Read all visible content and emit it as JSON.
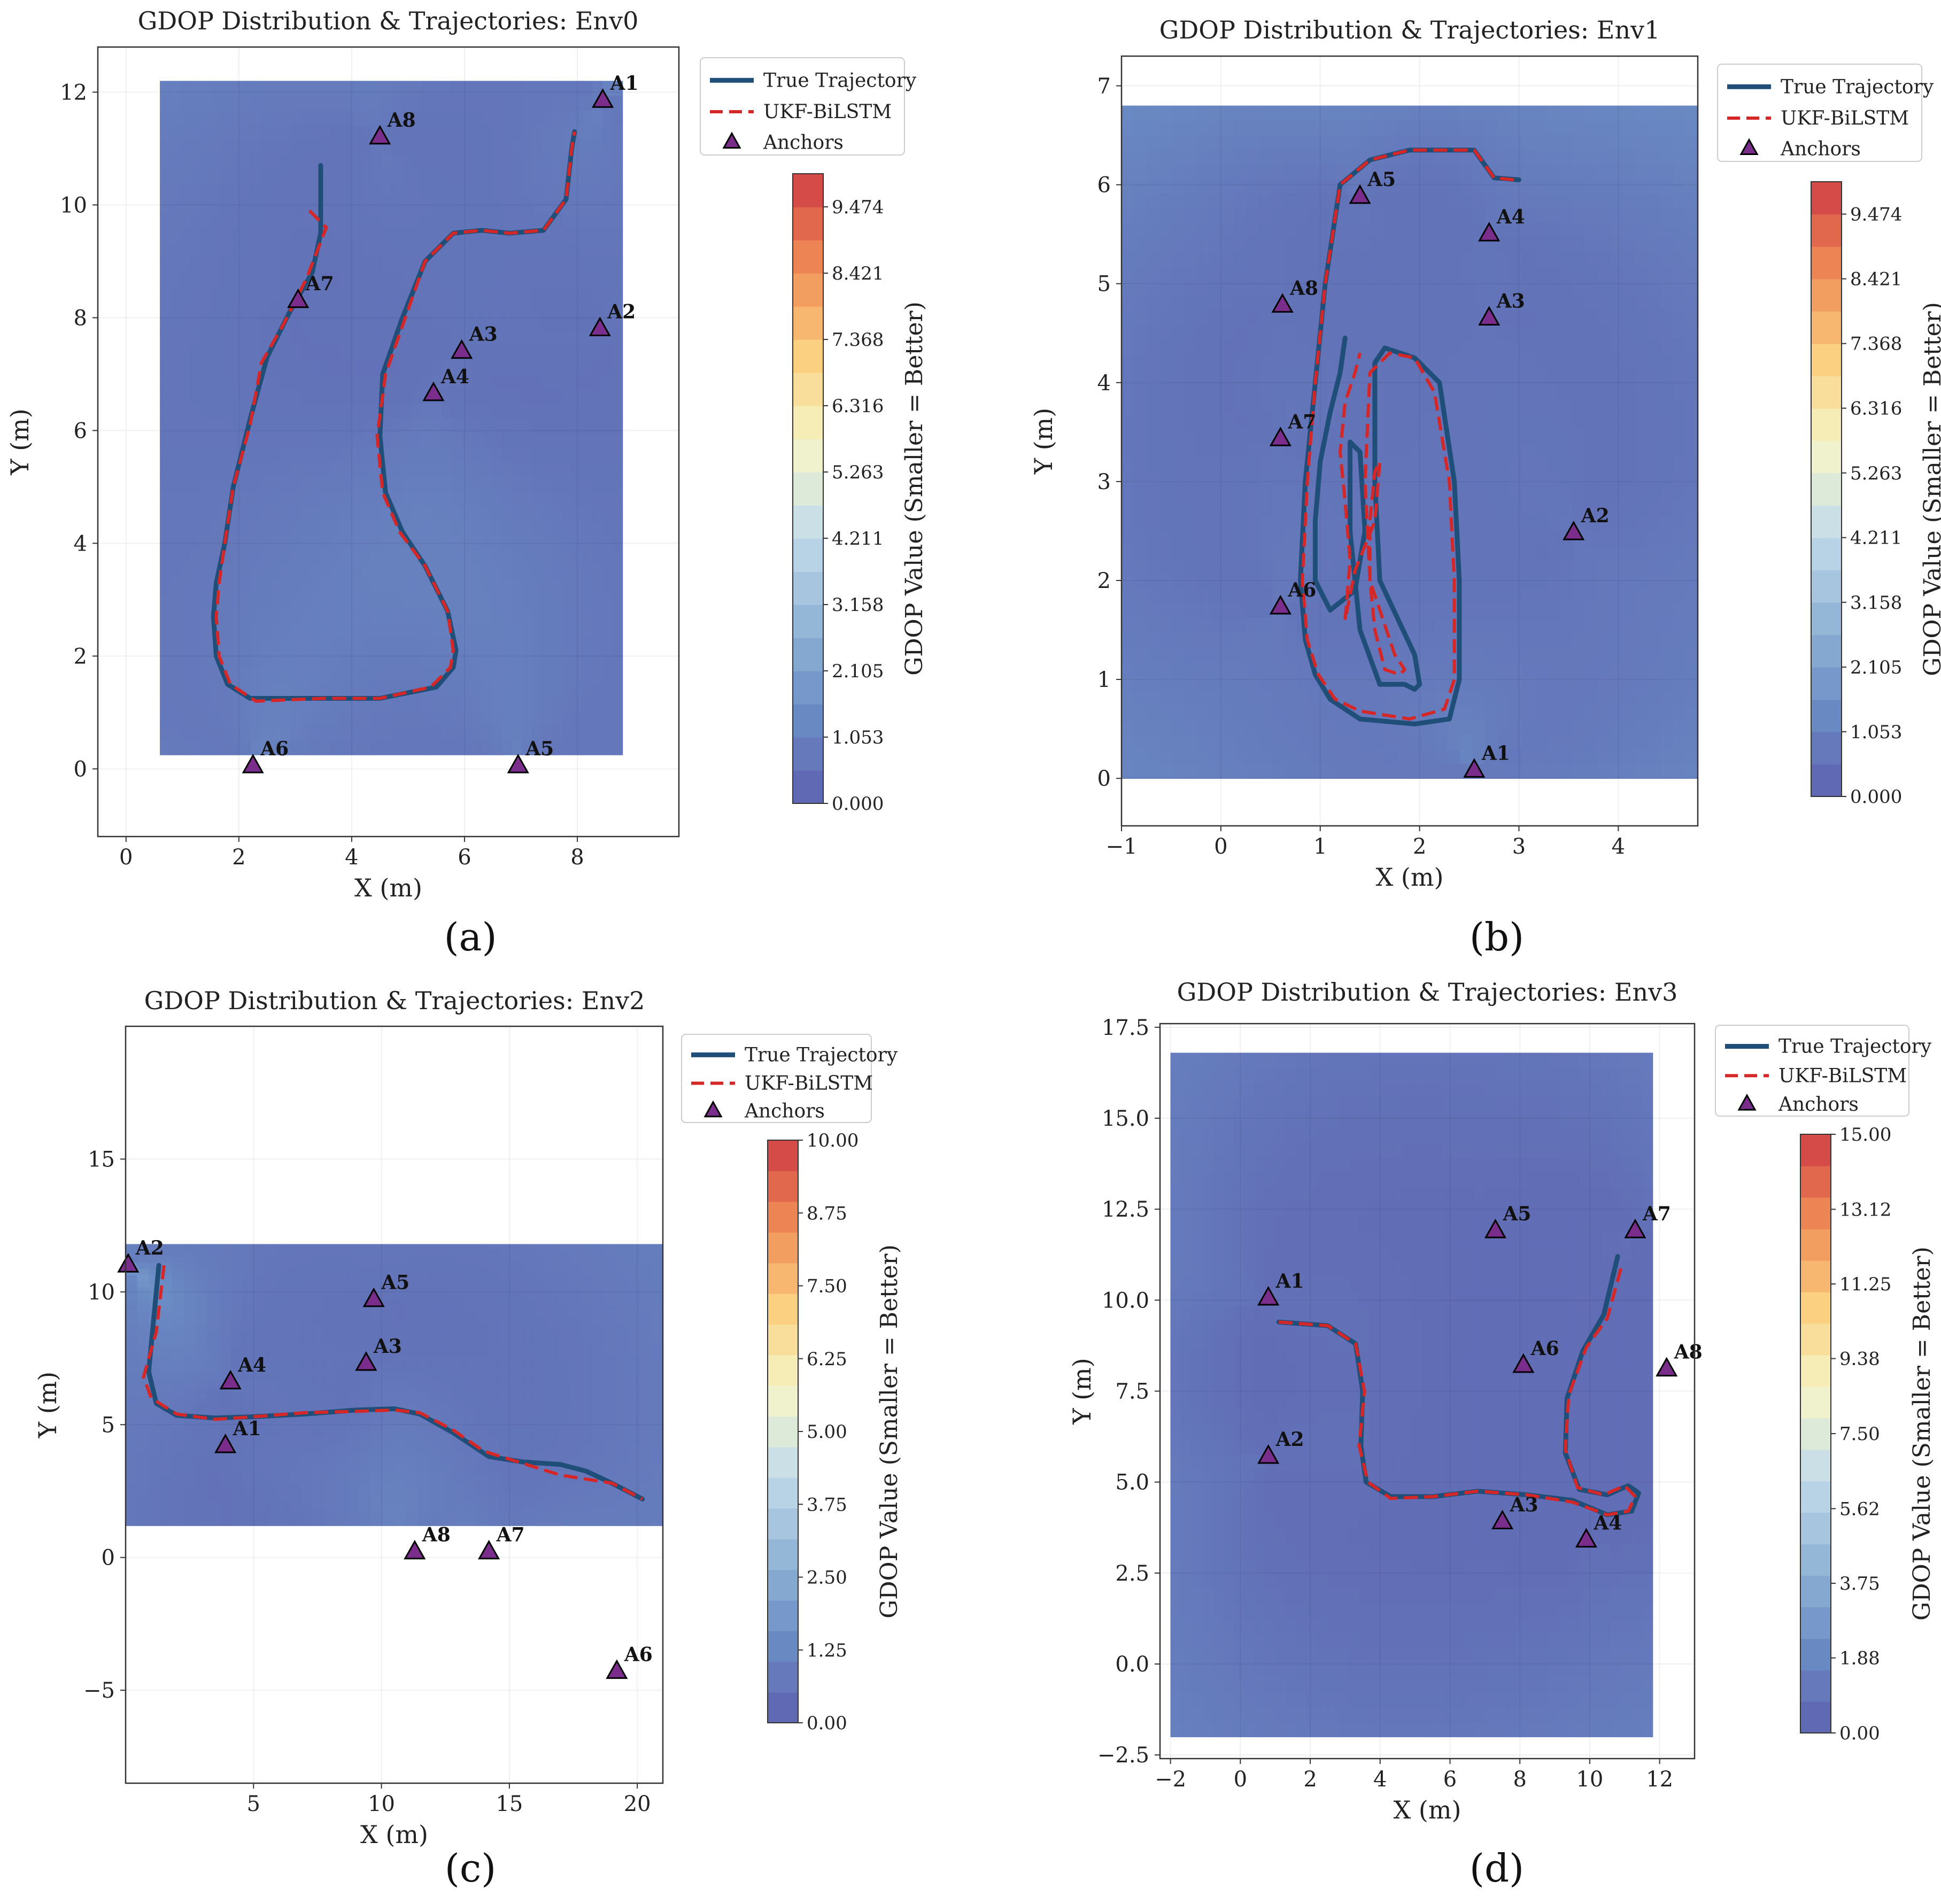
{
  "colors": {
    "true_trajectory": "#1f4e79",
    "ukf_bilstm": "#d62728",
    "anchor": "#7b2d8b",
    "colormap": [
      "#5e62b0",
      "#6a8cc4",
      "#93b6d8",
      "#c5dcea",
      "#f5f5c8",
      "#fbcf7e",
      "#f08a55",
      "#cf3d44"
    ]
  },
  "chart_data": [
    {
      "panel": "(a)",
      "type": "contour",
      "title": "GDOP Distribution & Trajectories: Env0",
      "xlabel": "X (m)",
      "ylabel": "Y (m)",
      "xlim": [
        -0.5,
        9.8
      ],
      "ylim": [
        -1.2,
        12.8
      ],
      "xticks": [
        0,
        2,
        4,
        6,
        8
      ],
      "yticks": [
        0,
        2,
        4,
        6,
        8,
        10,
        12
      ],
      "field_extent": {
        "x": [
          0.6,
          8.8
        ],
        "y": [
          0.25,
          12.2
        ]
      },
      "gdop_range": [
        0,
        10
      ],
      "colorbar": {
        "label": "GDOP Value (Smaller = Better)",
        "ticks": [
          "0.000",
          "1.053",
          "2.105",
          "3.158",
          "4.211",
          "5.263",
          "6.316",
          "7.368",
          "8.421",
          "9.474"
        ]
      },
      "legend": [
        "True Trajectory",
        "UKF-BiLSTM",
        "Anchors"
      ],
      "anchors": [
        {
          "name": "A1",
          "x": 8.45,
          "y": 11.85
        },
        {
          "name": "A2",
          "x": 8.4,
          "y": 7.8
        },
        {
          "name": "A3",
          "x": 5.95,
          "y": 7.4
        },
        {
          "name": "A4",
          "x": 5.45,
          "y": 6.65
        },
        {
          "name": "A5",
          "x": 6.95,
          "y": 0.05
        },
        {
          "name": "A6",
          "x": 2.25,
          "y": 0.05
        },
        {
          "name": "A7",
          "x": 3.05,
          "y": 8.3
        },
        {
          "name": "A8",
          "x": 4.5,
          "y": 11.2
        }
      ],
      "true_trajectory": {
        "x": [
          3.45,
          3.45,
          3.3,
          2.9,
          2.5,
          2.2,
          1.9,
          1.75,
          1.6,
          1.55,
          1.6,
          1.8,
          2.2,
          3.5,
          4.5,
          5.5,
          5.8,
          5.85,
          5.7,
          5.3,
          4.9,
          4.6,
          4.5,
          4.55,
          4.9,
          5.3,
          5.8,
          6.3,
          6.8,
          7.4,
          7.8,
          7.9,
          7.95
        ],
        "y": [
          10.7,
          9.5,
          8.8,
          8.1,
          7.3,
          6.2,
          5.0,
          4.0,
          3.3,
          2.7,
          2.0,
          1.5,
          1.25,
          1.25,
          1.25,
          1.45,
          1.8,
          2.1,
          2.8,
          3.6,
          4.2,
          4.9,
          5.9,
          7.0,
          8.0,
          9.0,
          9.5,
          9.55,
          9.5,
          9.55,
          10.1,
          11.0,
          11.3
        ]
      },
      "ukf_trajectory": {
        "x": [
          3.25,
          3.55,
          3.2,
          2.8,
          2.4,
          2.2,
          1.9,
          1.75,
          1.65,
          1.6,
          1.65,
          1.85,
          2.3,
          3.5,
          4.5,
          5.4,
          5.75,
          5.8,
          5.7,
          5.3,
          4.85,
          4.55,
          4.45,
          4.6,
          4.95,
          5.3,
          5.8,
          6.3,
          6.8,
          7.4,
          7.8,
          7.9,
          7.95
        ],
        "y": [
          9.9,
          9.6,
          8.7,
          7.9,
          7.2,
          6.1,
          5.0,
          4.0,
          3.3,
          2.7,
          2.0,
          1.5,
          1.2,
          1.25,
          1.25,
          1.45,
          1.8,
          2.1,
          2.8,
          3.6,
          4.2,
          4.9,
          5.9,
          7.0,
          8.0,
          9.0,
          9.5,
          9.55,
          9.5,
          9.55,
          10.1,
          11.0,
          11.3
        ]
      }
    },
    {
      "panel": "(b)",
      "type": "contour",
      "title": "GDOP Distribution & Trajectories: Env1",
      "xlabel": "X (m)",
      "ylabel": "Y (m)",
      "xlim": [
        -1,
        4.8
      ],
      "ylim": [
        -0.48,
        7.3
      ],
      "xticks": [
        -1,
        0,
        1,
        2,
        3,
        4
      ],
      "yticks": [
        0,
        1,
        2,
        3,
        4,
        5,
        6,
        7
      ],
      "field_extent": {
        "x": [
          -1,
          4.8
        ],
        "y": [
          0,
          6.8
        ]
      },
      "gdop_range": [
        0,
        10
      ],
      "colorbar": {
        "label": "GDOP Value (Smaller = Better)",
        "ticks": [
          "0.000",
          "1.053",
          "2.105",
          "3.158",
          "4.211",
          "5.263",
          "6.316",
          "7.368",
          "8.421",
          "9.474"
        ]
      },
      "legend": [
        "True Trajectory",
        "UKF-BiLSTM",
        "Anchors"
      ],
      "anchors": [
        {
          "name": "A1",
          "x": 2.55,
          "y": 0.08
        },
        {
          "name": "A2",
          "x": 3.55,
          "y": 2.48
        },
        {
          "name": "A3",
          "x": 2.7,
          "y": 4.65
        },
        {
          "name": "A4",
          "x": 2.7,
          "y": 5.5
        },
        {
          "name": "A5",
          "x": 1.4,
          "y": 5.88
        },
        {
          "name": "A6",
          "x": 0.6,
          "y": 1.73
        },
        {
          "name": "A7",
          "x": 0.6,
          "y": 3.43
        },
        {
          "name": "A8",
          "x": 0.62,
          "y": 4.78
        }
      ],
      "true_trajectory": {
        "x": [
          3.0,
          2.75,
          2.55,
          2.3,
          1.9,
          1.5,
          1.2,
          1.05,
          0.95,
          0.85,
          0.8,
          0.85,
          0.95,
          1.1,
          1.4,
          1.95,
          2.3,
          2.4,
          2.4,
          2.35,
          2.2,
          1.95,
          1.65,
          1.55,
          1.55,
          1.6,
          1.95,
          2.0,
          1.95,
          1.85,
          1.6,
          1.4,
          1.3,
          1.3,
          1.4,
          1.45,
          1.35,
          1.1,
          0.95,
          0.95,
          1.0,
          1.1,
          1.2,
          1.25
        ],
        "y": [
          6.05,
          6.07,
          6.35,
          6.35,
          6.35,
          6.25,
          6.0,
          5.0,
          4.0,
          3.0,
          2.0,
          1.4,
          1.05,
          0.8,
          0.6,
          0.55,
          0.6,
          1.0,
          2.0,
          3.0,
          4.0,
          4.25,
          4.35,
          4.2,
          3.0,
          2.0,
          1.25,
          0.95,
          0.9,
          0.95,
          0.95,
          1.5,
          2.5,
          3.4,
          3.3,
          2.5,
          1.9,
          1.7,
          2.0,
          2.6,
          3.2,
          3.7,
          4.1,
          4.45
        ]
      },
      "ukf_trajectory": {
        "x": [
          2.95,
          2.75,
          2.55,
          2.3,
          1.9,
          1.5,
          1.2,
          1.05,
          0.95,
          0.87,
          0.82,
          0.87,
          0.98,
          1.15,
          1.4,
          1.9,
          2.25,
          2.35,
          2.35,
          2.3,
          2.15,
          1.95,
          1.7,
          1.5,
          1.45,
          1.5,
          1.75,
          1.85,
          1.8,
          1.65,
          1.55,
          1.5,
          1.5,
          1.55,
          1.6,
          1.55,
          1.35,
          1.25,
          1.3,
          1.25,
          1.2,
          1.25,
          1.35,
          1.4
        ],
        "y": [
          6.05,
          6.07,
          6.35,
          6.35,
          6.35,
          6.25,
          6.0,
          5.0,
          4.0,
          3.0,
          2.0,
          1.4,
          1.05,
          0.8,
          0.68,
          0.6,
          0.7,
          1.0,
          2.0,
          3.0,
          3.9,
          4.25,
          4.3,
          4.1,
          3.0,
          2.0,
          1.25,
          1.1,
          1.05,
          1.1,
          1.5,
          2.0,
          2.6,
          3.1,
          3.2,
          2.6,
          2.1,
          1.6,
          2.2,
          2.8,
          3.3,
          3.8,
          4.1,
          4.3
        ]
      }
    },
    {
      "panel": "(c)",
      "type": "contour",
      "title": "GDOP Distribution & Trajectories: Env2",
      "xlabel": "X (m)",
      "ylabel": "Y (m)",
      "xlim": [
        0,
        21
      ],
      "ylim": [
        -8.5,
        20
      ],
      "xticks": [
        5,
        10,
        15,
        20
      ],
      "yticks": [
        -5,
        0,
        5,
        10,
        15
      ],
      "field_extent": {
        "x": [
          0,
          21
        ],
        "y": [
          1.2,
          11.8
        ]
      },
      "gdop_range": [
        0,
        10
      ],
      "colorbar": {
        "label": "GDOP Value (Smaller = Better)",
        "ticks": [
          "0.00",
          "1.25",
          "2.50",
          "3.75",
          "5.00",
          "6.25",
          "7.50",
          "8.75",
          "10.00"
        ]
      },
      "legend": [
        "True Trajectory",
        "UKF-BiLSTM",
        "Anchors"
      ],
      "anchors": [
        {
          "name": "A1",
          "x": 3.9,
          "y": 4.2
        },
        {
          "name": "A2",
          "x": 0.1,
          "y": 11.0
        },
        {
          "name": "A3",
          "x": 9.4,
          "y": 7.3
        },
        {
          "name": "A4",
          "x": 4.1,
          "y": 6.6
        },
        {
          "name": "A5",
          "x": 9.7,
          "y": 9.7
        },
        {
          "name": "A6",
          "x": 19.2,
          "y": -4.3
        },
        {
          "name": "A7",
          "x": 14.2,
          "y": 0.2
        },
        {
          "name": "A8",
          "x": 11.3,
          "y": 0.2
        }
      ],
      "true_trajectory": {
        "x": [
          1.3,
          1.1,
          0.9,
          1.2,
          2.0,
          3.5,
          5.0,
          7.0,
          9.0,
          10.5,
          11.5,
          12.8,
          14.2,
          15.5,
          17.0,
          18.0,
          19.0,
          20.2
        ],
        "y": [
          11.0,
          9.0,
          7.0,
          5.8,
          5.35,
          5.25,
          5.3,
          5.4,
          5.55,
          5.6,
          5.4,
          4.7,
          3.8,
          3.6,
          3.5,
          3.25,
          2.8,
          2.2
        ]
      },
      "ukf_trajectory": {
        "x": [
          1.5,
          1.2,
          0.7,
          1.0,
          2.0,
          3.5,
          5.0,
          7.0,
          9.0,
          10.5,
          11.5,
          12.8,
          14.0,
          15.5,
          17.0,
          18.0,
          19.0,
          20.2
        ],
        "y": [
          11.0,
          8.5,
          6.8,
          6.0,
          5.4,
          5.2,
          5.3,
          5.45,
          5.5,
          5.55,
          5.45,
          4.8,
          4.0,
          3.55,
          3.1,
          2.95,
          2.8,
          2.2
        ]
      }
    },
    {
      "panel": "(d)",
      "type": "contour",
      "title": "GDOP Distribution & Trajectories: Env3",
      "xlabel": "X (m)",
      "ylabel": "Y (m)",
      "xlim": [
        -2.3,
        13.0
      ],
      "ylim": [
        -2.6,
        17.6
      ],
      "xticks": [
        -2,
        0,
        2,
        4,
        6,
        8,
        10,
        12
      ],
      "yticks": [
        -2.5,
        0.0,
        2.5,
        5.0,
        7.5,
        10.0,
        12.5,
        15.0,
        17.5
      ],
      "field_extent": {
        "x": [
          -2,
          11.8
        ],
        "y": [
          -2,
          16.8
        ]
      },
      "gdop_range": [
        0,
        15
      ],
      "colorbar": {
        "label": "GDOP Value (Smaller = Better)",
        "ticks": [
          "0.00",
          "1.88",
          "3.75",
          "5.62",
          "7.50",
          "9.38",
          "11.25",
          "13.12",
          "15.00"
        ]
      },
      "legend": [
        "True Trajectory",
        "UKF-BiLSTM",
        "Anchors"
      ],
      "anchors": [
        {
          "name": "A1",
          "x": 0.8,
          "y": 10.05
        },
        {
          "name": "A2",
          "x": 0.8,
          "y": 5.7
        },
        {
          "name": "A3",
          "x": 7.5,
          "y": 3.9
        },
        {
          "name": "A4",
          "x": 9.9,
          "y": 3.4
        },
        {
          "name": "A5",
          "x": 7.3,
          "y": 11.9
        },
        {
          "name": "A6",
          "x": 8.1,
          "y": 8.2
        },
        {
          "name": "A7",
          "x": 11.3,
          "y": 11.9
        },
        {
          "name": "A8",
          "x": 12.2,
          "y": 8.1
        }
      ],
      "true_trajectory": {
        "x": [
          1.1,
          2.5,
          3.3,
          3.5,
          3.45,
          3.6,
          4.3,
          5.5,
          6.8,
          8.2,
          9.5,
          10.5,
          11.2,
          11.4,
          11.1,
          10.5,
          9.7,
          9.3,
          9.35,
          9.8,
          10.4,
          10.8
        ],
        "y": [
          9.4,
          9.3,
          8.8,
          7.5,
          6.0,
          5.0,
          4.6,
          4.6,
          4.75,
          4.65,
          4.5,
          4.1,
          4.2,
          4.7,
          4.9,
          4.65,
          4.8,
          5.8,
          7.3,
          8.6,
          9.6,
          11.2
        ]
      },
      "ukf_trajectory": {
        "x": [
          1.1,
          2.5,
          3.3,
          3.55,
          3.4,
          3.65,
          4.3,
          5.5,
          6.8,
          8.2,
          9.5,
          10.5,
          11.1,
          11.3,
          11.0,
          10.4,
          9.65,
          9.3,
          9.4,
          9.9,
          10.5,
          10.9
        ],
        "y": [
          9.4,
          9.3,
          8.8,
          7.5,
          6.0,
          5.0,
          4.55,
          4.6,
          4.75,
          4.65,
          4.45,
          4.1,
          4.2,
          4.6,
          4.9,
          4.65,
          4.85,
          5.9,
          7.4,
          8.7,
          9.5,
          10.9
        ]
      }
    }
  ]
}
